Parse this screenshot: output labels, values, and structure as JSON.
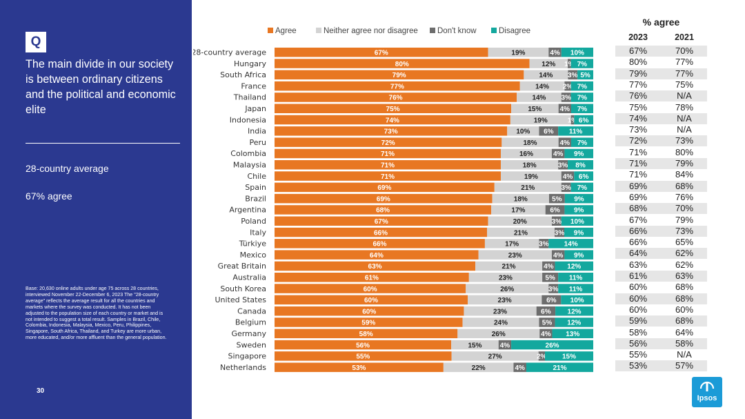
{
  "sidebar": {
    "badge": "Q",
    "question": "The main divide in our society is between ordinary citizens and the political and economic elite",
    "avg_label": "28-country average",
    "avg_value": "67% agree",
    "base_note": "Base: 20,630 online adults under age 75 across 28 countries, interviewed November 22-December 6, 2023 The \"28-country average\" reflects the average result for all the countries and markets where the survey was conducted. It has not been adjusted to the population size of each country or market and is not intended to suggest a total result. Samples in Brazil, Chile, Colombia, Indonesia, Malaysia, Mexico, Peru, Philippines, Singapore, South Africa, Thailand, and Turkey are more urban, more educated, and/or more affluent than the general population.",
    "page_number": "30"
  },
  "brand": {
    "name": "Ipsos",
    "color": "#1b9bd7"
  },
  "colors": {
    "agree": "#e87722",
    "neither": "#d3d3d3",
    "dontknow": "#6d6d6d",
    "disagree": "#13a89e",
    "sidebar": "#2b3990",
    "table_shade": "#e6e6e6"
  },
  "table": {
    "title": "% agree",
    "col_2023": "2023",
    "col_2021": "2021"
  },
  "chart_data": {
    "type": "bar",
    "orientation": "horizontal",
    "stacked": true,
    "legend_position": "top",
    "categories": [
      "28-country average",
      "Hungary",
      "South Africa",
      "France",
      "Thailand",
      "Japan",
      "Indonesia",
      "India",
      "Peru",
      "Colombia",
      "Malaysia",
      "Chile",
      "Spain",
      "Brazil",
      "Argentina",
      "Poland",
      "Italy",
      "Türkiye",
      "Mexico",
      "Great Britain",
      "Australia",
      "South Korea",
      "United States",
      "Canada",
      "Belgium",
      "Germany",
      "Sweden",
      "Singapore",
      "Netherlands"
    ],
    "series": [
      {
        "name": "Agree",
        "color": "#e87722",
        "values": [
          67,
          80,
          79,
          77,
          76,
          75,
          74,
          73,
          72,
          71,
          71,
          71,
          69,
          69,
          68,
          67,
          66,
          66,
          64,
          63,
          61,
          60,
          60,
          60,
          59,
          58,
          56,
          55,
          53
        ]
      },
      {
        "name": "Neither agree nor disagree",
        "color": "#d3d3d3",
        "values": [
          19,
          12,
          14,
          14,
          14,
          15,
          19,
          10,
          18,
          16,
          18,
          19,
          21,
          18,
          17,
          20,
          21,
          17,
          23,
          21,
          23,
          26,
          23,
          23,
          24,
          26,
          15,
          27,
          22
        ]
      },
      {
        "name": "Don't know",
        "color": "#6d6d6d",
        "values": [
          4,
          1,
          3,
          2,
          3,
          4,
          1,
          6,
          4,
          4,
          3,
          4,
          3,
          5,
          6,
          3,
          3,
          3,
          4,
          4,
          5,
          3,
          6,
          6,
          5,
          4,
          4,
          2,
          4
        ]
      },
      {
        "name": "Disagree",
        "color": "#13a89e",
        "values": [
          10,
          7,
          5,
          7,
          7,
          7,
          6,
          11,
          7,
          9,
          8,
          6,
          7,
          9,
          9,
          10,
          9,
          14,
          9,
          12,
          11,
          11,
          10,
          12,
          12,
          13,
          26,
          15,
          21
        ]
      }
    ],
    "pct_2023": [
      "67%",
      "80%",
      "79%",
      "77%",
      "76%",
      "75%",
      "74%",
      "73%",
      "72%",
      "71%",
      "71%",
      "71%",
      "69%",
      "69%",
      "68%",
      "67%",
      "66%",
      "66%",
      "64%",
      "63%",
      "61%",
      "60%",
      "60%",
      "60%",
      "59%",
      "58%",
      "56%",
      "55%",
      "53%"
    ],
    "pct_2021": [
      "70%",
      "77%",
      "77%",
      "75%",
      "N/A",
      "78%",
      "N/A",
      "N/A",
      "73%",
      "80%",
      "79%",
      "84%",
      "68%",
      "76%",
      "70%",
      "79%",
      "73%",
      "65%",
      "62%",
      "62%",
      "63%",
      "68%",
      "68%",
      "60%",
      "68%",
      "64%",
      "58%",
      "N/A",
      "57%"
    ],
    "xlim": [
      0,
      100
    ]
  }
}
